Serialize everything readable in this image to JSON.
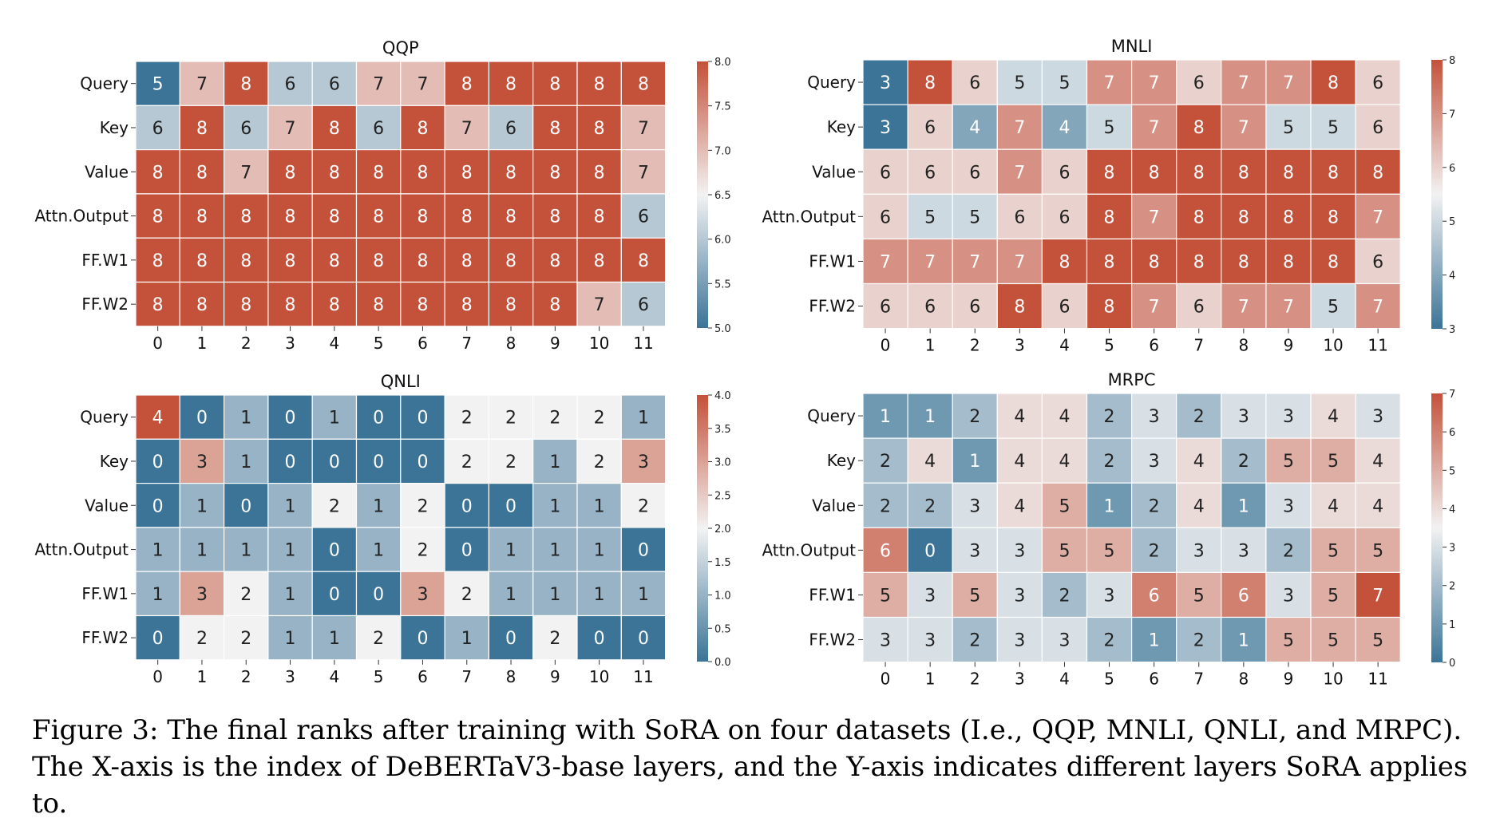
{
  "caption": "Figure 3: The final ranks after training with SoRA on four datasets (I.e., QQP, MNLI, QNLI, and MRPC). The X-axis is the index of DeBERTaV3-base layers, and the Y-axis indicates different layers SoRA applies to.",
  "colormap": {
    "low": "#3b7497",
    "mid": "#f2f2f2",
    "high": "#c4513a"
  },
  "chart_data": [
    {
      "type": "heatmap",
      "title": "QQP",
      "x": [
        "0",
        "1",
        "2",
        "3",
        "4",
        "5",
        "6",
        "7",
        "8",
        "9",
        "10",
        "11"
      ],
      "y": [
        "Query",
        "Key",
        "Value",
        "Attn.Output",
        "FF.W1",
        "FF.W2"
      ],
      "values": [
        [
          5,
          7,
          8,
          6,
          6,
          7,
          7,
          8,
          8,
          8,
          8,
          8
        ],
        [
          6,
          8,
          6,
          7,
          8,
          6,
          8,
          7,
          6,
          8,
          8,
          7
        ],
        [
          8,
          8,
          7,
          8,
          8,
          8,
          8,
          8,
          8,
          8,
          8,
          7
        ],
        [
          8,
          8,
          8,
          8,
          8,
          8,
          8,
          8,
          8,
          8,
          8,
          6
        ],
        [
          8,
          8,
          8,
          8,
          8,
          8,
          8,
          8,
          8,
          8,
          8,
          8
        ],
        [
          8,
          8,
          8,
          8,
          8,
          8,
          8,
          8,
          8,
          8,
          7,
          6
        ]
      ],
      "vmin": 5,
      "vmax": 8,
      "colorbar_ticks": [
        "5.0",
        "5.5",
        "6.0",
        "6.5",
        "7.0",
        "7.5",
        "8.0"
      ]
    },
    {
      "type": "heatmap",
      "title": "MNLI",
      "x": [
        "0",
        "1",
        "2",
        "3",
        "4",
        "5",
        "6",
        "7",
        "8",
        "9",
        "10",
        "11"
      ],
      "y": [
        "Query",
        "Key",
        "Value",
        "Attn.Output",
        "FF.W1",
        "FF.W2"
      ],
      "values": [
        [
          3,
          8,
          6,
          5,
          5,
          7,
          7,
          6,
          7,
          7,
          8,
          6
        ],
        [
          3,
          6,
          4,
          7,
          4,
          5,
          7,
          8,
          7,
          5,
          5,
          6
        ],
        [
          6,
          6,
          6,
          7,
          6,
          8,
          8,
          8,
          8,
          8,
          8,
          8
        ],
        [
          6,
          5,
          5,
          6,
          6,
          8,
          7,
          8,
          8,
          8,
          8,
          7
        ],
        [
          7,
          7,
          7,
          7,
          8,
          8,
          8,
          8,
          8,
          8,
          8,
          6
        ],
        [
          6,
          6,
          6,
          8,
          6,
          8,
          7,
          6,
          7,
          7,
          5,
          7
        ]
      ],
      "vmin": 3,
      "vmax": 8,
      "colorbar_ticks": [
        "3",
        "4",
        "5",
        "6",
        "7",
        "8"
      ]
    },
    {
      "type": "heatmap",
      "title": "QNLI",
      "x": [
        "0",
        "1",
        "2",
        "3",
        "4",
        "5",
        "6",
        "7",
        "8",
        "9",
        "10",
        "11"
      ],
      "y": [
        "Query",
        "Key",
        "Value",
        "Attn.Output",
        "FF.W1",
        "FF.W2"
      ],
      "values": [
        [
          4,
          0,
          1,
          0,
          1,
          0,
          0,
          2,
          2,
          2,
          2,
          1
        ],
        [
          0,
          3,
          1,
          0,
          0,
          0,
          0,
          2,
          2,
          1,
          2,
          3
        ],
        [
          0,
          1,
          0,
          1,
          2,
          1,
          2,
          0,
          0,
          1,
          1,
          2
        ],
        [
          1,
          1,
          1,
          1,
          0,
          1,
          2,
          0,
          1,
          1,
          1,
          0
        ],
        [
          1,
          3,
          2,
          1,
          0,
          0,
          3,
          2,
          1,
          1,
          1,
          1
        ],
        [
          0,
          2,
          2,
          1,
          1,
          2,
          0,
          1,
          0,
          2,
          0,
          0
        ]
      ],
      "vmin": 0,
      "vmax": 4,
      "colorbar_ticks": [
        "0.0",
        "0.5",
        "1.0",
        "1.5",
        "2.0",
        "2.5",
        "3.0",
        "3.5",
        "4.0"
      ]
    },
    {
      "type": "heatmap",
      "title": "MRPC",
      "x": [
        "0",
        "1",
        "2",
        "3",
        "4",
        "5",
        "6",
        "7",
        "8",
        "9",
        "10",
        "11"
      ],
      "y": [
        "Query",
        "Key",
        "Value",
        "Attn.Output",
        "FF.W1",
        "FF.W2"
      ],
      "values": [
        [
          1,
          1,
          2,
          4,
          4,
          2,
          3,
          2,
          3,
          3,
          4,
          3
        ],
        [
          2,
          4,
          1,
          4,
          4,
          2,
          3,
          4,
          2,
          5,
          5,
          4
        ],
        [
          2,
          2,
          3,
          4,
          5,
          1,
          2,
          4,
          1,
          3,
          4,
          4
        ],
        [
          6,
          0,
          3,
          3,
          5,
          5,
          2,
          3,
          3,
          2,
          5,
          5
        ],
        [
          5,
          3,
          5,
          3,
          2,
          3,
          6,
          5,
          6,
          3,
          5,
          7
        ],
        [
          3,
          3,
          2,
          3,
          3,
          2,
          1,
          2,
          1,
          5,
          5,
          5
        ]
      ],
      "vmin": 0,
      "vmax": 7,
      "colorbar_ticks": [
        "0",
        "1",
        "2",
        "3",
        "4",
        "5",
        "6",
        "7"
      ]
    }
  ]
}
